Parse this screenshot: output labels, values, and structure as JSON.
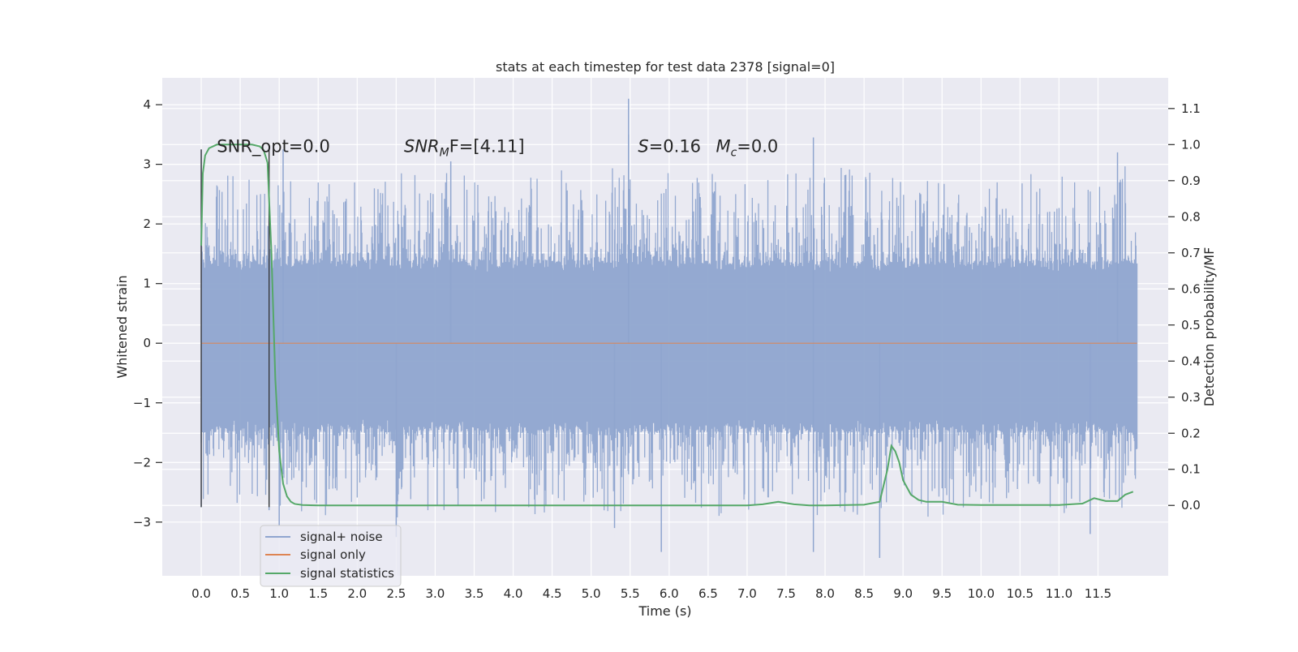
{
  "chart_data": {
    "type": "line",
    "title": "stats at each timestep for test data 2378 [signal=0]",
    "xlabel": "Time (s)",
    "ylabel_left": "Whitened strain",
    "ylabel_right": "Detection probability/MF",
    "xlim": [
      -0.5,
      12.4
    ],
    "ylim_left": [
      -3.9,
      4.45
    ],
    "ylim_right": [
      -0.195,
      1.185
    ],
    "x_ticks": [
      0.0,
      0.5,
      1.0,
      1.5,
      2.0,
      2.5,
      3.0,
      3.5,
      4.0,
      4.5,
      5.0,
      5.5,
      6.0,
      6.5,
      7.0,
      7.5,
      8.0,
      8.5,
      9.0,
      9.5,
      10.0,
      10.5,
      11.0,
      11.5
    ],
    "x_tick_labels": [
      "0.0",
      "0.5",
      "1.0",
      "1.5",
      "2.0",
      "2.5",
      "3.0",
      "3.5",
      "4.0",
      "4.5",
      "5.0",
      "5.5",
      "6.0",
      "6.5",
      "7.0",
      "7.5",
      "8.0",
      "8.5",
      "9.0",
      "9.5",
      "10.0",
      "10.5",
      "11.0",
      "11.5"
    ],
    "y_left_ticks": [
      -3,
      -2,
      -1,
      0,
      1,
      2,
      3,
      4
    ],
    "y_left_tick_labels": [
      "−3",
      "−2",
      "−1",
      "0",
      "1",
      "2",
      "3",
      "4"
    ],
    "y_right_ticks": [
      0.0,
      0.1,
      0.2,
      0.3,
      0.4,
      0.5,
      0.6,
      0.7,
      0.8,
      0.9,
      1.0,
      1.1
    ],
    "y_right_tick_labels": [
      "0.0",
      "0.1",
      "0.2",
      "0.3",
      "0.4",
      "0.5",
      "0.6",
      "0.7",
      "0.8",
      "0.9",
      "1.0",
      "1.1"
    ],
    "grid": true,
    "legend_position": "lower-left",
    "series": [
      {
        "name": "signal+ noise",
        "axis": "left",
        "color": "#8fa5cf",
        "x_range": [
          0.0,
          12.0
        ],
        "envelope_upper_typical": 1.4,
        "envelope_lower_typical": -1.5,
        "peaks": [
          {
            "x": 0.0,
            "y": 3.25
          },
          {
            "x": 0.0,
            "y": -2.75
          },
          {
            "x": 0.87,
            "y": 2.75
          },
          {
            "x": 0.87,
            "y": -2.8
          },
          {
            "x": 1.0,
            "y": -3.05
          },
          {
            "x": 1.05,
            "y": 3.25
          },
          {
            "x": 2.5,
            "y": -3.25
          },
          {
            "x": 3.2,
            "y": 3.05
          },
          {
            "x": 5.3,
            "y": -3.1
          },
          {
            "x": 5.48,
            "y": 4.1
          },
          {
            "x": 5.48,
            "y": 3.5
          },
          {
            "x": 5.9,
            "y": -3.5
          },
          {
            "x": 7.85,
            "y": 3.45
          },
          {
            "x": 7.85,
            "y": -3.5
          },
          {
            "x": 8.7,
            "y": -3.6
          },
          {
            "x": 11.4,
            "y": -3.2
          },
          {
            "x": 11.75,
            "y": 3.2
          }
        ]
      },
      {
        "name": "signal only",
        "axis": "left",
        "color": "#dd8452",
        "x": [
          0.0,
          12.0
        ],
        "y": [
          0.0,
          0.0
        ]
      },
      {
        "name": "signal statistics",
        "axis": "right",
        "color": "#55a868",
        "x": [
          0.0,
          0.02,
          0.05,
          0.1,
          0.2,
          0.3,
          0.5,
          0.65,
          0.75,
          0.8,
          0.85,
          0.9,
          0.95,
          1.0,
          1.05,
          1.1,
          1.15,
          1.2,
          1.3,
          1.5,
          2.0,
          3.0,
          4.0,
          5.0,
          6.0,
          7.0,
          7.2,
          7.4,
          7.6,
          7.8,
          8.0,
          8.5,
          8.7,
          8.8,
          8.85,
          8.9,
          8.95,
          9.0,
          9.1,
          9.2,
          9.3,
          9.5,
          9.7,
          10.0,
          10.5,
          11.0,
          11.3,
          11.45,
          11.6,
          11.75,
          11.85,
          11.95
        ],
        "y": [
          0.72,
          0.92,
          0.97,
          0.99,
          1.0,
          1.0,
          1.0,
          1.0,
          0.995,
          0.985,
          0.95,
          0.7,
          0.35,
          0.15,
          0.06,
          0.025,
          0.01,
          0.004,
          0.001,
          0.0,
          0.0,
          0.0,
          0.0,
          0.0,
          0.0,
          0.0,
          0.003,
          0.01,
          0.003,
          0.0,
          0.0,
          0.002,
          0.01,
          0.1,
          0.165,
          0.15,
          0.12,
          0.07,
          0.03,
          0.015,
          0.01,
          0.01,
          0.002,
          0.001,
          0.001,
          0.001,
          0.005,
          0.02,
          0.012,
          0.012,
          0.03,
          0.038
        ]
      }
    ],
    "vertical_lines": [
      0.0,
      0.87
    ],
    "annotations": [
      {
        "id": "snr-opt",
        "text": "SNR_opt=0.0",
        "x": 0.2,
        "y": 3.3
      },
      {
        "id": "snr-mf",
        "text_main": "SNR",
        "text_sub": "M",
        "text_rest": "F=[4.11]",
        "x": 2.6,
        "y": 3.3
      },
      {
        "id": "s-value",
        "text_main": "S",
        "text_rest": "=0.16",
        "x": 5.6,
        "y": 3.3
      },
      {
        "id": "mc-value",
        "text_main": "M",
        "text_sub": "c",
        "text_rest": "=0.0",
        "x": 6.6,
        "y": 3.3
      }
    ],
    "plot_background": "#eaeaf2",
    "grid_color": "#ffffff"
  }
}
